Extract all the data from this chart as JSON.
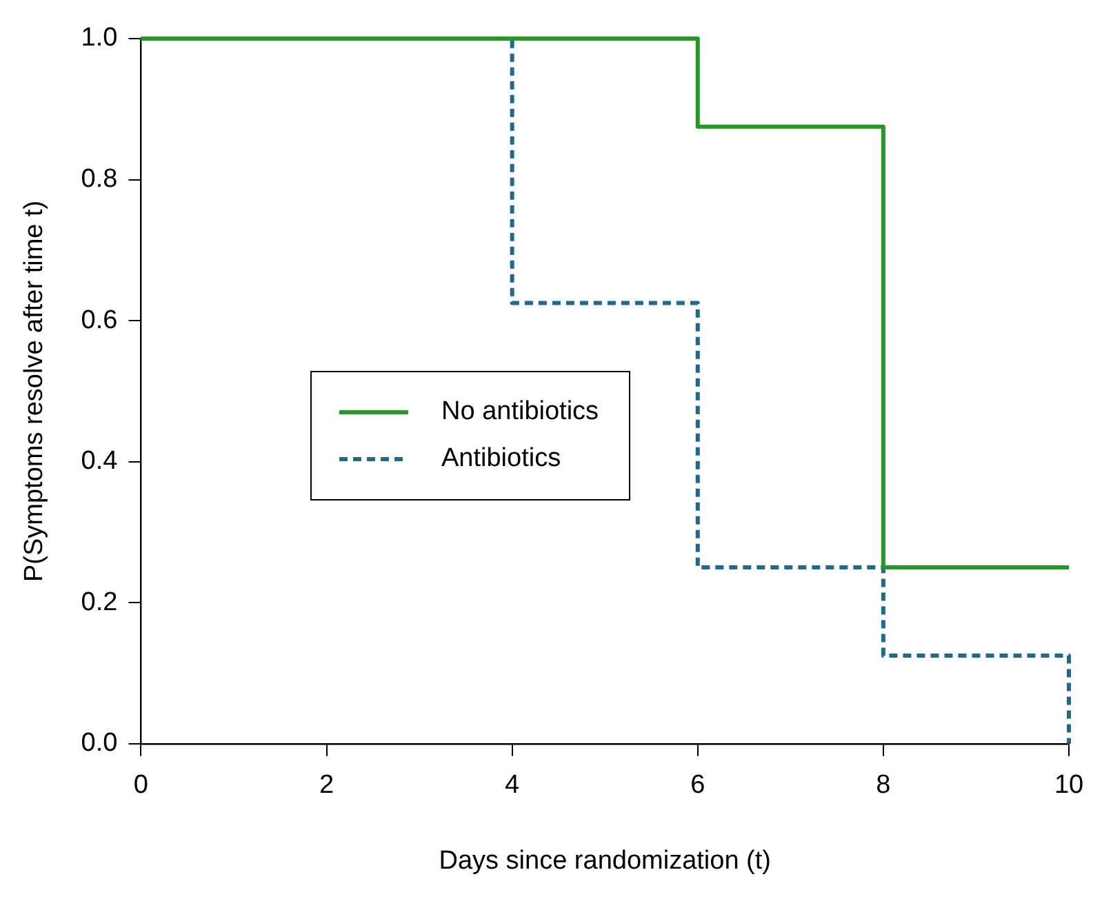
{
  "chart_data": {
    "type": "step",
    "xlabel": "Days since randomization (t)",
    "ylabel": "P(Symptoms resolve after time t)",
    "xlim": [
      0,
      10
    ],
    "ylim": [
      0,
      1
    ],
    "xticks": [
      0,
      2,
      4,
      6,
      8,
      10
    ],
    "yticks": [
      {
        "value": 0,
        "label": "0.0"
      },
      {
        "value": 0.2,
        "label": "0.2"
      },
      {
        "value": 0.4,
        "label": "0.4"
      },
      {
        "value": 0.6,
        "label": "0.6"
      },
      {
        "value": 0.8,
        "label": "0.8"
      },
      {
        "value": 1,
        "label": "1.0"
      }
    ],
    "grid": false,
    "legend": "left",
    "marker": "none",
    "series": [
      {
        "name": "No antibiotics",
        "color": "#229a22",
        "line_style": "solid",
        "x": [
          0,
          6,
          8,
          10
        ],
        "values": [
          1,
          0.875,
          0.25,
          0.25
        ]
      },
      {
        "name": "Antibiotics",
        "color": "#1d6a8c",
        "line_style": "dashed",
        "x": [
          0,
          4,
          6,
          8,
          10
        ],
        "values": [
          1,
          0.625,
          0.25,
          0.125,
          0
        ]
      }
    ]
  }
}
